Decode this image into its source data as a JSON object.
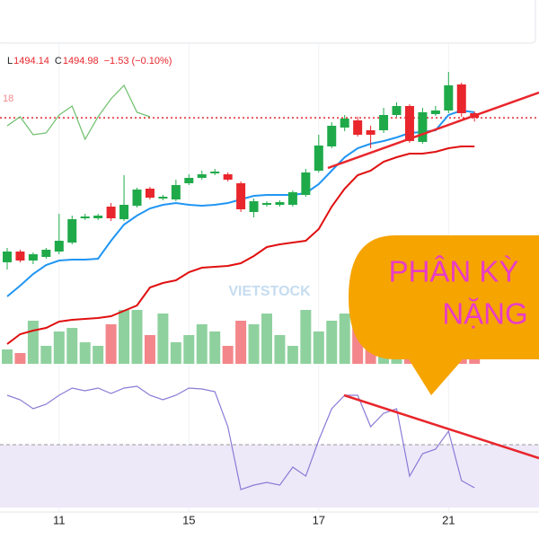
{
  "chart_data": {
    "type": "candlestick",
    "header": [
      {
        "key": "L",
        "text": "1494.14"
      },
      {
        "key": "C",
        "text": "1494.98"
      },
      {
        "text": "−1.53 (−0.10%)"
      }
    ],
    "side_label": "18",
    "watermark": "VIETSTOCK",
    "annotation": [
      "PHÂN KỲ",
      "NẶNG"
    ],
    "categories": [
      null,
      null,
      null,
      null,
      "11",
      null,
      null,
      null,
      null,
      null,
      null,
      null,
      null,
      null,
      "15",
      null,
      null,
      null,
      null,
      null,
      null,
      null,
      null,
      null,
      "17",
      null,
      null,
      null,
      null,
      null,
      null,
      null,
      null,
      null,
      "21",
      null,
      null
    ],
    "open": [
      1462.8,
      1465.2,
      1463.2,
      1464.0,
      1465.2,
      1467.2,
      1472.6,
      1472.6,
      1475.2,
      1472.4,
      1475.4,
      1479.2,
      1477.0,
      1476.8,
      1480.4,
      1481.6,
      1482.6,
      1482.4,
      1480.4,
      1474.0,
      1475.6,
      1475.6,
      1475.6,
      1477.8,
      1483.2,
      1488.6,
      1492.8,
      1494.4,
      1492.2,
      1492.2,
      1495.6,
      1497.6,
      1489.6,
      1495.8,
      1496.6,
      1502.4,
      1496.0
    ],
    "high": [
      1466.0,
      1465.6,
      1465.0,
      1466.0,
      1473.6,
      1473.2,
      1473.6,
      1473.6,
      1476.0,
      1482.2,
      1479.4,
      1479.6,
      1477.8,
      1481.2,
      1482.4,
      1483.2,
      1483.6,
      1482.8,
      1480.8,
      1477.0,
      1476.4,
      1476.6,
      1478.8,
      1483.6,
      1491.2,
      1494.0,
      1495.6,
      1495.2,
      1493.2,
      1497.2,
      1498.4,
      1498.0,
      1497.2,
      1497.6,
      1505.2,
      1502.8,
      1496.4
    ],
    "low": [
      1461.2,
      1462.8,
      1462.4,
      1463.6,
      1464.6,
      1466.8,
      1472.2,
      1472.2,
      1472.0,
      1472.0,
      1475.0,
      1476.8,
      1476.6,
      1476.4,
      1480.0,
      1481.2,
      1482.2,
      1480.8,
      1474.0,
      1472.8,
      1475.2,
      1475.2,
      1475.2,
      1477.4,
      1482.8,
      1488.2,
      1492.0,
      1490.8,
      1488.2,
      1491.6,
      1495.2,
      1489.4,
      1489.2,
      1495.4,
      1496.0,
      1495.2,
      1494.14
    ],
    "close": [
      1465.2,
      1463.2,
      1464.6,
      1465.6,
      1467.6,
      1472.4,
      1473.0,
      1473.2,
      1472.6,
      1475.6,
      1479.0,
      1477.2,
      1477.4,
      1480.0,
      1481.6,
      1482.4,
      1483.0,
      1481.2,
      1474.6,
      1476.4,
      1476.0,
      1476.2,
      1478.4,
      1482.8,
      1488.8,
      1493.2,
      1494.8,
      1491.2,
      1491.2,
      1495.6,
      1497.6,
      1489.8,
      1496.2,
      1496.6,
      1502.2,
      1496.0,
      1494.98
    ],
    "up_color": "#1faa4a",
    "down_color": "#e8262c",
    "ylim": [
      1439.2,
      1515.2
    ],
    "last_price_line": true,
    "lines": [
      {
        "color": "#2196f3",
        "values": [
          1455.2,
          1457.6,
          1460.2,
          1462.2,
          1463.2,
          1463.4,
          1463.4,
          1463.6,
          1467.6,
          1471.2,
          1473.2,
          1474.8,
          1475.6,
          1476.0,
          1475.6,
          1475.4,
          1475.6,
          1476.0,
          1476.8,
          1477.6,
          1477.8,
          1477.8,
          1477.8,
          1478.2,
          1480.2,
          1483.2,
          1486.2,
          1488.2,
          1489.2,
          1489.8,
          1490.6,
          1491.6,
          1491.8,
          1492.2,
          1495.6,
          1496.6,
          1496.2
        ]
      },
      {
        "color": "#e01010",
        "values": [
          1444.6,
          1446.8,
          1447.6,
          1448.2,
          1449.6,
          1450.0,
          1450.2,
          1450.4,
          1450.8,
          1452.0,
          1453.2,
          1457.2,
          1458.2,
          1458.8,
          1460.6,
          1461.6,
          1461.8,
          1462.0,
          1462.6,
          1464.2,
          1466.2,
          1466.8,
          1467.2,
          1467.6,
          1470.2,
          1475.2,
          1479.2,
          1482.2,
          1483.2,
          1485.2,
          1486.2,
          1487.0,
          1487.0,
          1487.4,
          1488.2,
          1488.6,
          1488.6
        ]
      },
      {
        "color": "#6cbf6c",
        "values": [
          1493.2,
          1495.2,
          1491.2,
          1491.6,
          1495.6,
          1497.6,
          1490.2,
          1495.2,
          1499.2,
          1502.2,
          1496.2,
          1495.2,
          null,
          null,
          null,
          null,
          null,
          null,
          null,
          null,
          null,
          null,
          null,
          null,
          null,
          null,
          null,
          null,
          null,
          null,
          null,
          null,
          null,
          null,
          null,
          null,
          null
        ]
      }
    ],
    "volume": {
      "values": [
        20,
        15,
        60,
        25,
        45,
        50,
        30,
        25,
        55,
        75,
        75,
        40,
        70,
        30,
        40,
        55,
        45,
        25,
        60,
        55,
        70,
        40,
        25,
        75,
        45,
        60,
        70,
        60,
        40,
        30,
        40,
        20,
        25,
        20,
        15,
        15,
        10
      ],
      "vlim": [
        0,
        100
      ],
      "up_color": "#8fd19e",
      "down_color": "#f3868a"
    },
    "rsi": {
      "values": [
        52,
        50,
        46,
        48,
        52,
        55.2,
        54,
        55.2,
        52.8,
        55.2,
        56,
        52,
        50,
        52,
        55.2,
        54.8,
        53.6,
        38,
        10,
        12,
        13.2,
        12,
        20,
        16,
        32,
        46,
        52,
        52,
        38,
        44,
        46,
        16,
        26,
        28,
        36,
        14,
        10.8
      ],
      "ylim": [
        0,
        58
      ],
      "band": [
        0,
        30
      ],
      "color": "#8c7ad6",
      "band_color": "#ede9f9"
    }
  }
}
